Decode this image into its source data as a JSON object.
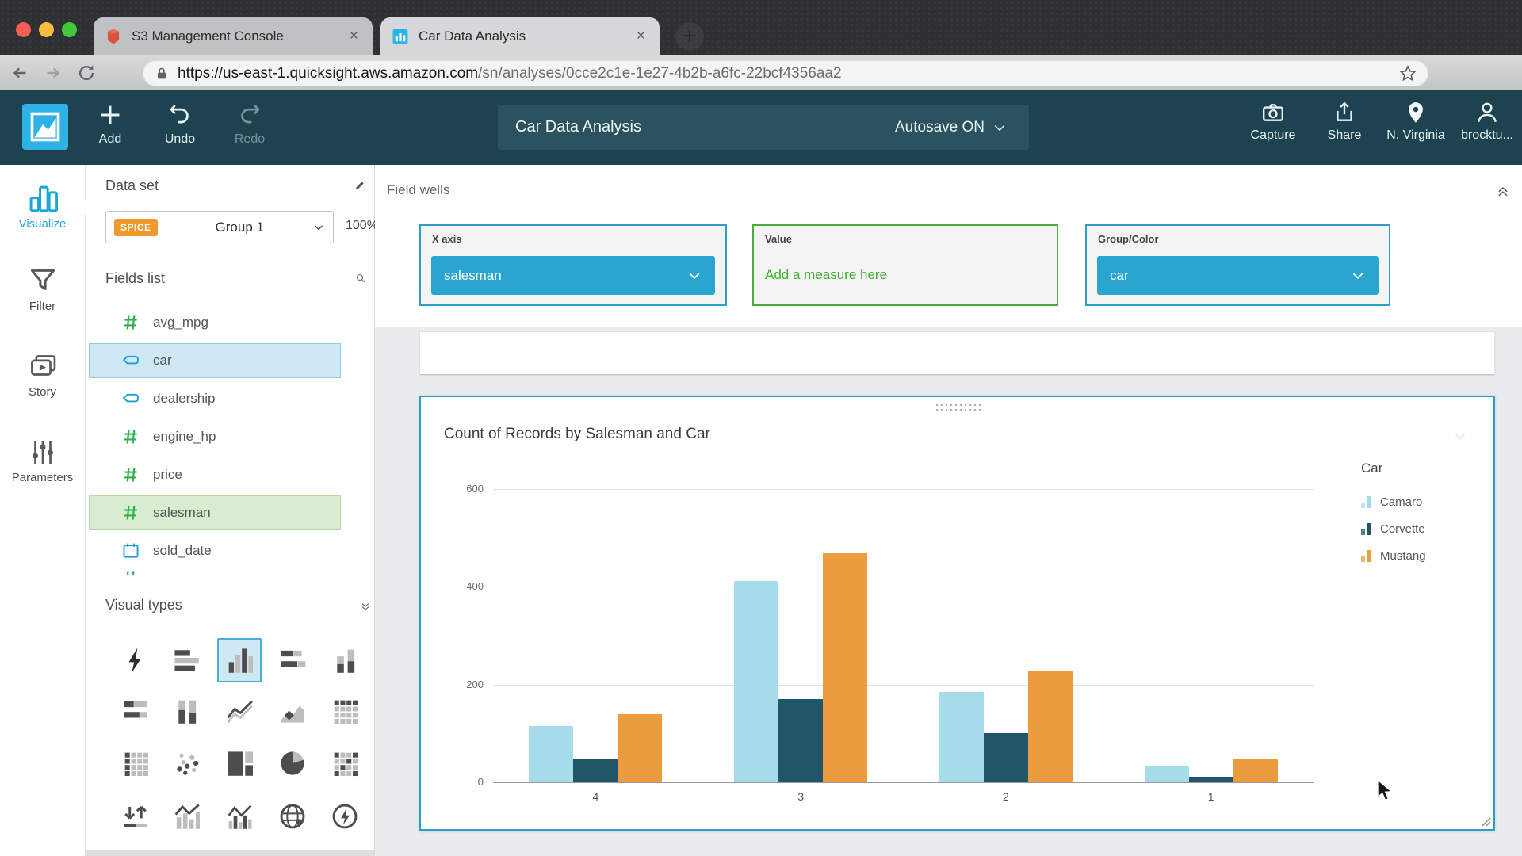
{
  "browser": {
    "tabs": [
      {
        "title": "S3 Management Console",
        "icon": "s3-icon",
        "active": false
      },
      {
        "title": "Car Data Analysis",
        "icon": "quicksight-icon",
        "active": true
      }
    ],
    "url_domain": "https://us-east-1.quicksight.aws.amazon.com",
    "url_path": "/sn/analyses/0cce2c1e-1e27-4b2b-a6fc-22bcf4356aa2"
  },
  "qs_header": {
    "tools": [
      {
        "label": "Add",
        "icon": "add-plus-icon",
        "disabled": false
      },
      {
        "label": "Undo",
        "icon": "undo-icon",
        "disabled": false
      },
      {
        "label": "Redo",
        "icon": "redo-icon",
        "disabled": true
      }
    ],
    "analysis_title": "Car Data Analysis",
    "autosave_label": "Autosave ON",
    "actions": [
      {
        "label": "Capture",
        "icon": "camera-icon"
      },
      {
        "label": "Share",
        "icon": "share-icon"
      },
      {
        "label": "N. Virginia",
        "icon": "location-pin-icon"
      },
      {
        "label": "brocktu...",
        "icon": "user-icon"
      }
    ]
  },
  "nav_rail": {
    "items": [
      {
        "label": "Visualize",
        "icon": "visualize-icon",
        "active": true
      },
      {
        "label": "Filter",
        "icon": "filter-icon",
        "active": false
      },
      {
        "label": "Story",
        "icon": "story-icon",
        "active": false
      },
      {
        "label": "Parameters",
        "icon": "parameters-icon",
        "active": false
      }
    ]
  },
  "dataset_panel": {
    "heading": "Data set",
    "spice_badge": "SPICE",
    "dataset_name": "Group 1",
    "progress": "100%",
    "fields_heading": "Fields list",
    "fields": [
      {
        "name": "avg_mpg",
        "type": "numeric",
        "highlight": "none"
      },
      {
        "name": "car",
        "type": "text",
        "highlight": "blue"
      },
      {
        "name": "dealership",
        "type": "text",
        "highlight": "none"
      },
      {
        "name": "engine_hp",
        "type": "numeric",
        "highlight": "none"
      },
      {
        "name": "price",
        "type": "numeric",
        "highlight": "none"
      },
      {
        "name": "salesman",
        "type": "numeric",
        "highlight": "green"
      },
      {
        "name": "sold_date",
        "type": "date",
        "highlight": "none"
      }
    ],
    "visual_types_heading": "Visual types",
    "visual_types": [
      {
        "name": "auto-graph-icon",
        "selected": false
      },
      {
        "name": "horizontal-bar-chart-icon",
        "selected": false
      },
      {
        "name": "vertical-bar-chart-icon",
        "selected": true
      },
      {
        "name": "horizontal-stacked-bar-icon",
        "selected": false
      },
      {
        "name": "vertical-stacked-bar-icon",
        "selected": false
      },
      {
        "name": "horizontal-100-stacked-bar-icon",
        "selected": false
      },
      {
        "name": "vertical-100-stacked-bar-icon",
        "selected": false
      },
      {
        "name": "line-chart-icon",
        "selected": false
      },
      {
        "name": "area-line-chart-icon",
        "selected": false
      },
      {
        "name": "pivot-table-icon",
        "selected": false
      },
      {
        "name": "heat-map-icon",
        "selected": false
      },
      {
        "name": "scatter-plot-icon",
        "selected": false
      },
      {
        "name": "tree-map-icon",
        "selected": false
      },
      {
        "name": "pie-chart-icon",
        "selected": false
      },
      {
        "name": "table-icon",
        "selected": false
      },
      {
        "name": "kpi-icon",
        "selected": false
      },
      {
        "name": "combo-bar-line-icon",
        "selected": false
      },
      {
        "name": "combo-clustered-bar-line-icon",
        "selected": false
      },
      {
        "name": "geospatial-map-icon",
        "selected": false
      },
      {
        "name": "insights-icon",
        "selected": false
      }
    ]
  },
  "field_wells": {
    "heading": "Field wells",
    "wells": [
      {
        "label": "X axis",
        "value": "salesman",
        "style": "blue-dropdown"
      },
      {
        "label": "Value",
        "placeholder": "Add a measure here",
        "style": "green-empty"
      },
      {
        "label": "Group/Color",
        "value": "car",
        "style": "blue-dropdown"
      }
    ]
  },
  "chart_data": {
    "type": "bar",
    "title": "Count of Records by Salesman and Car",
    "xlabel": "",
    "ylabel": "",
    "categories": [
      "4",
      "3",
      "2",
      "1"
    ],
    "series": [
      {
        "name": "Camaro",
        "color": "#a6dcea",
        "values": [
          115,
          412,
          185,
          33
        ]
      },
      {
        "name": "Corvette",
        "color": "#215668",
        "values": [
          48,
          170,
          100,
          12
        ]
      },
      {
        "name": "Mustang",
        "color": "#ec9b3e",
        "values": [
          140,
          468,
          228,
          48
        ]
      }
    ],
    "ylim": [
      0,
      600
    ],
    "yticks": [
      0,
      200,
      400,
      600
    ],
    "grid": true,
    "legend_title": "Car",
    "legend_position": "right"
  },
  "colors": {
    "qs_header_bg": "#1d4350",
    "qs_accent_blue": "#2aa5cf",
    "well_blue_border": "#2b9fc4",
    "well_green_border": "#4bae3a",
    "measure_green_text": "#3cae2c",
    "numeric_field_green": "#2fb14d",
    "text_field_blue": "#1d9fd0",
    "field_highlight_blue": "#cfe9f4",
    "field_highlight_green": "#d8edcf",
    "spice_badge_orange": "#f09a2d",
    "card_selected_border": "#2a9fc6",
    "traffic_red": "#f85d54",
    "traffic_yellow": "#f6bd3e",
    "traffic_green": "#43c83c"
  }
}
